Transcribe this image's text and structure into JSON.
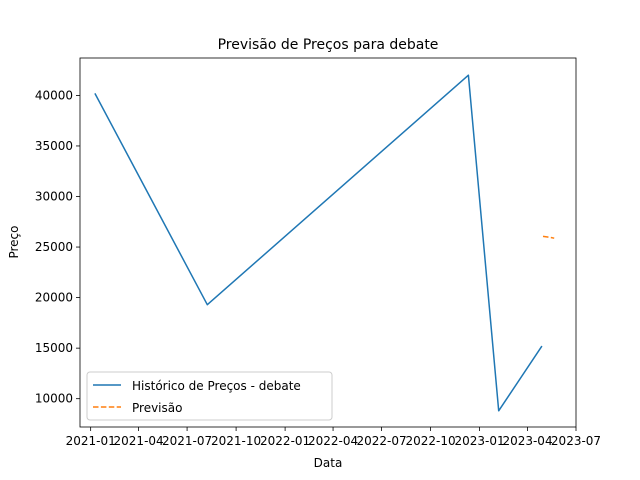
{
  "chart_data": {
    "type": "line",
    "title": "Previsão de Preços para debate",
    "xlabel": "Data",
    "ylabel": "Preço",
    "xlim": [
      "2020-12-12",
      "2023-07-01"
    ],
    "ylim": [
      7200,
      43700
    ],
    "x_ticks": [
      {
        "date": "2021-01-01",
        "label": "2021-01"
      },
      {
        "date": "2021-04-01",
        "label": "2021-04"
      },
      {
        "date": "2021-07-01",
        "label": "2021-07"
      },
      {
        "date": "2021-10-01",
        "label": "2021-10"
      },
      {
        "date": "2022-01-01",
        "label": "2022-01"
      },
      {
        "date": "2022-04-01",
        "label": "2022-04"
      },
      {
        "date": "2022-07-01",
        "label": "2022-07"
      },
      {
        "date": "2022-10-01",
        "label": "2022-10"
      },
      {
        "date": "2023-01-01",
        "label": "2023-01"
      },
      {
        "date": "2023-04-01",
        "label": "2023-04"
      },
      {
        "date": "2023-07-01",
        "label": "2023-07"
      }
    ],
    "y_ticks": [
      10000,
      15000,
      20000,
      25000,
      30000,
      35000,
      40000
    ],
    "grid": false,
    "legend_position": "lower-left",
    "series": [
      {
        "name": "Histórico de Preços - debate",
        "color": "#1f77b4",
        "style": "solid",
        "points": [
          {
            "x": "2021-01-09",
            "y": 40200
          },
          {
            "x": "2021-08-08",
            "y": 19300
          },
          {
            "x": "2022-12-11",
            "y": 42000
          },
          {
            "x": "2023-02-06",
            "y": 8800
          },
          {
            "x": "2023-04-28",
            "y": 15200
          }
        ]
      },
      {
        "name": "Previsão",
        "color": "#ff7f0e",
        "style": "dashed",
        "points": [
          {
            "x": "2023-04-30",
            "y": 26050
          },
          {
            "x": "2023-05-07",
            "y": 26000
          },
          {
            "x": "2023-05-14",
            "y": 25950
          },
          {
            "x": "2023-05-21",
            "y": 25880
          }
        ]
      }
    ]
  }
}
